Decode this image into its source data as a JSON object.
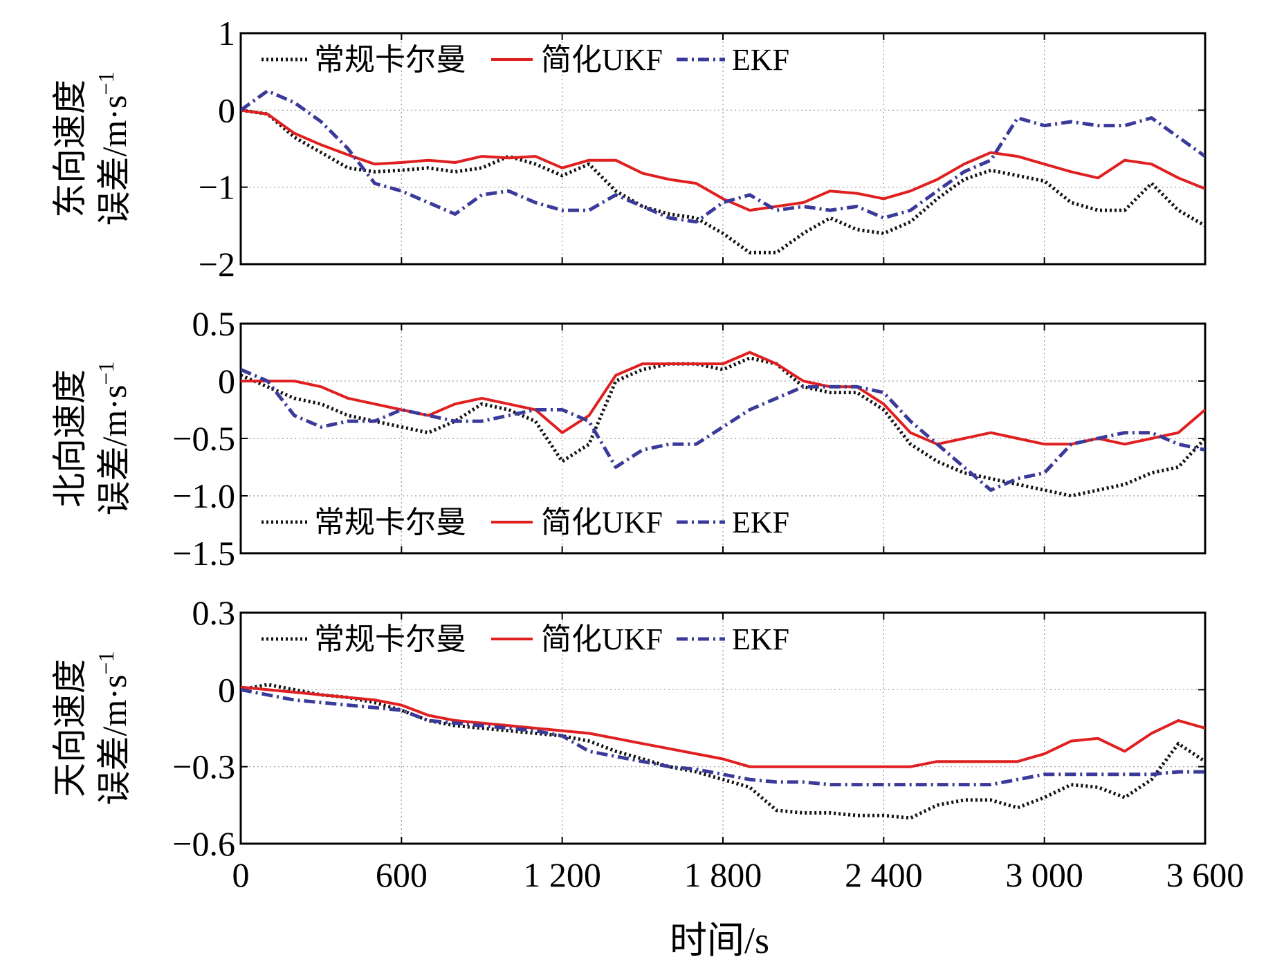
{
  "xlabel": "时间/s",
  "x_ticks": [
    "0",
    "600",
    "1 200",
    "1 800",
    "2 400",
    "3 000",
    "3 600"
  ],
  "legend": [
    {
      "name": "常规卡尔曼",
      "color": "#111111",
      "style": "dotted"
    },
    {
      "name": "简化UKF",
      "color": "#e02020",
      "style": "solid"
    },
    {
      "name": "EKF",
      "color": "#3a3a9a",
      "style": "dashdot"
    }
  ],
  "chart_data": [
    {
      "type": "line",
      "panel": "east",
      "ylabel_line1": "东向速度",
      "ylabel_line2": "误差/m·s",
      "ylabel_sup": "−1",
      "xlim": [
        0,
        3600
      ],
      "ylim": [
        -2,
        1
      ],
      "y_ticks": [
        1,
        0,
        -1,
        -2
      ],
      "y_tick_labels": [
        "1",
        "0",
        "−1",
        "−2"
      ],
      "legend_position": "top-left",
      "grid": true,
      "x": [
        0,
        100,
        200,
        300,
        400,
        500,
        600,
        700,
        800,
        900,
        1000,
        1100,
        1200,
        1300,
        1400,
        1500,
        1600,
        1700,
        1800,
        1900,
        2000,
        2100,
        2200,
        2300,
        2400,
        2500,
        2600,
        2700,
        2800,
        2900,
        3000,
        3100,
        3200,
        3300,
        3400,
        3500,
        3600
      ],
      "series": [
        {
          "name": "常规卡尔曼",
          "values": [
            0.0,
            -0.05,
            -0.35,
            -0.55,
            -0.75,
            -0.8,
            -0.78,
            -0.75,
            -0.8,
            -0.75,
            -0.6,
            -0.7,
            -0.85,
            -0.7,
            -1.05,
            -1.25,
            -1.35,
            -1.4,
            -1.6,
            -1.85,
            -1.85,
            -1.6,
            -1.4,
            -1.55,
            -1.6,
            -1.45,
            -1.15,
            -0.9,
            -0.78,
            -0.85,
            -0.92,
            -1.2,
            -1.3,
            -1.3,
            -0.95,
            -1.3,
            -1.5
          ]
        },
        {
          "name": "简化UKF",
          "values": [
            0.0,
            -0.05,
            -0.3,
            -0.45,
            -0.58,
            -0.7,
            -0.68,
            -0.65,
            -0.68,
            -0.6,
            -0.62,
            -0.6,
            -0.75,
            -0.65,
            -0.65,
            -0.82,
            -0.9,
            -0.95,
            -1.15,
            -1.3,
            -1.25,
            -1.2,
            -1.05,
            -1.08,
            -1.15,
            -1.05,
            -0.9,
            -0.7,
            -0.55,
            -0.6,
            -0.7,
            -0.8,
            -0.88,
            -0.65,
            -0.7,
            -0.88,
            -1.02
          ]
        },
        {
          "name": "EKF",
          "values": [
            0.0,
            0.25,
            0.1,
            -0.15,
            -0.5,
            -0.95,
            -1.05,
            -1.2,
            -1.35,
            -1.1,
            -1.05,
            -1.2,
            -1.3,
            -1.3,
            -1.1,
            -1.25,
            -1.4,
            -1.45,
            -1.2,
            -1.1,
            -1.3,
            -1.25,
            -1.3,
            -1.25,
            -1.4,
            -1.3,
            -1.05,
            -0.8,
            -0.65,
            -0.1,
            -0.2,
            -0.15,
            -0.2,
            -0.2,
            -0.1,
            -0.35,
            -0.6
          ]
        }
      ]
    },
    {
      "type": "line",
      "panel": "north",
      "ylabel_line1": "北向速度",
      "ylabel_line2": "误差/m·s",
      "ylabel_sup": "−1",
      "xlim": [
        0,
        3600
      ],
      "ylim": [
        -1.5,
        0.5
      ],
      "y_ticks": [
        0.5,
        0,
        -0.5,
        -1.0,
        -1.5
      ],
      "y_tick_labels": [
        "0.5",
        "0",
        "−0.5",
        "−1.0",
        "−1.5"
      ],
      "legend_position": "bottom-left",
      "grid": true,
      "x": [
        0,
        100,
        200,
        300,
        400,
        500,
        600,
        700,
        800,
        900,
        1000,
        1100,
        1200,
        1300,
        1400,
        1500,
        1600,
        1700,
        1800,
        1900,
        2000,
        2100,
        2200,
        2300,
        2400,
        2500,
        2600,
        2700,
        2800,
        2900,
        3000,
        3100,
        3200,
        3300,
        3400,
        3500,
        3600
      ],
      "series": [
        {
          "name": "常规卡尔曼",
          "values": [
            0.05,
            -0.05,
            -0.15,
            -0.2,
            -0.3,
            -0.35,
            -0.4,
            -0.45,
            -0.35,
            -0.2,
            -0.25,
            -0.35,
            -0.7,
            -0.55,
            0.0,
            0.1,
            0.15,
            0.15,
            0.1,
            0.2,
            0.15,
            -0.05,
            -0.1,
            -0.1,
            -0.25,
            -0.55,
            -0.7,
            -0.8,
            -0.85,
            -0.9,
            -0.95,
            -1.0,
            -0.95,
            -0.9,
            -0.8,
            -0.75,
            -0.5
          ]
        },
        {
          "name": "简化UKF",
          "values": [
            0.0,
            0.0,
            0.0,
            -0.05,
            -0.15,
            -0.2,
            -0.25,
            -0.3,
            -0.2,
            -0.15,
            -0.2,
            -0.25,
            -0.45,
            -0.3,
            0.05,
            0.15,
            0.15,
            0.15,
            0.15,
            0.25,
            0.15,
            0.0,
            -0.05,
            -0.05,
            -0.2,
            -0.45,
            -0.55,
            -0.5,
            -0.45,
            -0.5,
            -0.55,
            -0.55,
            -0.5,
            -0.55,
            -0.5,
            -0.45,
            -0.25
          ]
        },
        {
          "name": "EKF",
          "values": [
            0.1,
            0.0,
            -0.3,
            -0.4,
            -0.35,
            -0.35,
            -0.25,
            -0.3,
            -0.35,
            -0.35,
            -0.3,
            -0.25,
            -0.25,
            -0.35,
            -0.75,
            -0.6,
            -0.55,
            -0.55,
            -0.4,
            -0.25,
            -0.15,
            -0.05,
            -0.05,
            -0.05,
            -0.1,
            -0.35,
            -0.55,
            -0.75,
            -0.95,
            -0.85,
            -0.8,
            -0.55,
            -0.5,
            -0.45,
            -0.45,
            -0.55,
            -0.6
          ]
        }
      ]
    },
    {
      "type": "line",
      "panel": "up",
      "ylabel_line1": "天向速度",
      "ylabel_line2": "误差/m·s",
      "ylabel_sup": "−1",
      "xlim": [
        0,
        3600
      ],
      "ylim": [
        -0.6,
        0.3
      ],
      "y_ticks": [
        0.3,
        0,
        -0.3,
        -0.6
      ],
      "y_tick_labels": [
        "0.3",
        "0",
        "−0.3",
        "−0.6"
      ],
      "legend_position": "top-left",
      "grid": true,
      "x": [
        0,
        100,
        200,
        300,
        400,
        500,
        600,
        700,
        800,
        900,
        1000,
        1100,
        1200,
        1300,
        1400,
        1500,
        1600,
        1700,
        1800,
        1900,
        2000,
        2100,
        2200,
        2300,
        2400,
        2500,
        2600,
        2700,
        2800,
        2900,
        3000,
        3100,
        3200,
        3300,
        3400,
        3500,
        3600
      ],
      "series": [
        {
          "name": "常规卡尔曼",
          "values": [
            0.0,
            0.02,
            0.0,
            -0.02,
            -0.03,
            -0.05,
            -0.08,
            -0.12,
            -0.14,
            -0.15,
            -0.16,
            -0.17,
            -0.18,
            -0.2,
            -0.24,
            -0.27,
            -0.3,
            -0.32,
            -0.35,
            -0.38,
            -0.47,
            -0.48,
            -0.48,
            -0.49,
            -0.49,
            -0.5,
            -0.45,
            -0.43,
            -0.43,
            -0.46,
            -0.42,
            -0.37,
            -0.38,
            -0.42,
            -0.35,
            -0.21,
            -0.28
          ]
        },
        {
          "name": "简化UKF",
          "values": [
            0.01,
            0.0,
            -0.01,
            -0.02,
            -0.03,
            -0.04,
            -0.06,
            -0.1,
            -0.12,
            -0.13,
            -0.14,
            -0.15,
            -0.16,
            -0.17,
            -0.19,
            -0.21,
            -0.23,
            -0.25,
            -0.27,
            -0.3,
            -0.3,
            -0.3,
            -0.3,
            -0.3,
            -0.3,
            -0.3,
            -0.28,
            -0.28,
            -0.28,
            -0.28,
            -0.25,
            -0.2,
            -0.19,
            -0.24,
            -0.17,
            -0.12,
            -0.15
          ]
        },
        {
          "name": "EKF",
          "values": [
            0.0,
            -0.02,
            -0.04,
            -0.05,
            -0.06,
            -0.07,
            -0.08,
            -0.12,
            -0.13,
            -0.14,
            -0.15,
            -0.16,
            -0.18,
            -0.24,
            -0.26,
            -0.28,
            -0.3,
            -0.31,
            -0.33,
            -0.35,
            -0.36,
            -0.36,
            -0.37,
            -0.37,
            -0.37,
            -0.37,
            -0.37,
            -0.37,
            -0.37,
            -0.35,
            -0.33,
            -0.33,
            -0.33,
            -0.33,
            -0.33,
            -0.32,
            -0.32
          ]
        }
      ]
    }
  ]
}
